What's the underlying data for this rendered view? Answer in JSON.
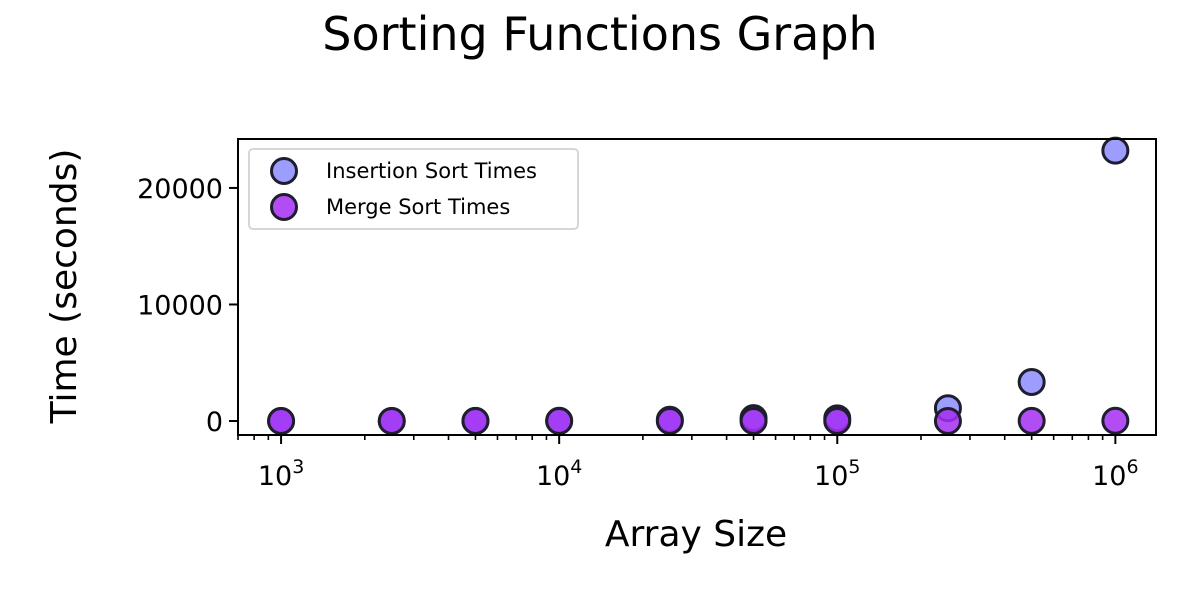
{
  "chart_data": {
    "type": "scatter",
    "title": "Sorting Functions Graph",
    "xlabel": "Array Size",
    "ylabel": "Time (seconds)",
    "x_scale": "log",
    "xlim": [
      700,
      1400000
    ],
    "ylim": [
      -1200,
      24200
    ],
    "x_ticks": [
      {
        "value": 1000,
        "base": "10",
        "exp": "3"
      },
      {
        "value": 10000,
        "base": "10",
        "exp": "4"
      },
      {
        "value": 100000,
        "base": "10",
        "exp": "5"
      },
      {
        "value": 1000000,
        "base": "10",
        "exp": "6"
      }
    ],
    "y_ticks": [
      {
        "value": 0,
        "label": "0"
      },
      {
        "value": 10000,
        "label": "10000"
      },
      {
        "value": 20000,
        "label": "20000"
      }
    ],
    "grid": false,
    "legend": "upper-left",
    "x": [
      1000,
      2500,
      5000,
      10000,
      25000,
      50000,
      100000,
      250000,
      500000,
      1000000
    ],
    "series": [
      {
        "name": "Insertion Sort Times",
        "color": "#8c8cff",
        "values": [
          0.5,
          3,
          12,
          25,
          110,
          250,
          230,
          1100,
          3350,
          23200
        ]
      },
      {
        "name": "Merge Sort Times",
        "color": "#a52ef5",
        "values": [
          0.01,
          0.03,
          0.06,
          0.13,
          0.35,
          0.75,
          1.6,
          4.5,
          9.5,
          21
        ]
      }
    ]
  }
}
